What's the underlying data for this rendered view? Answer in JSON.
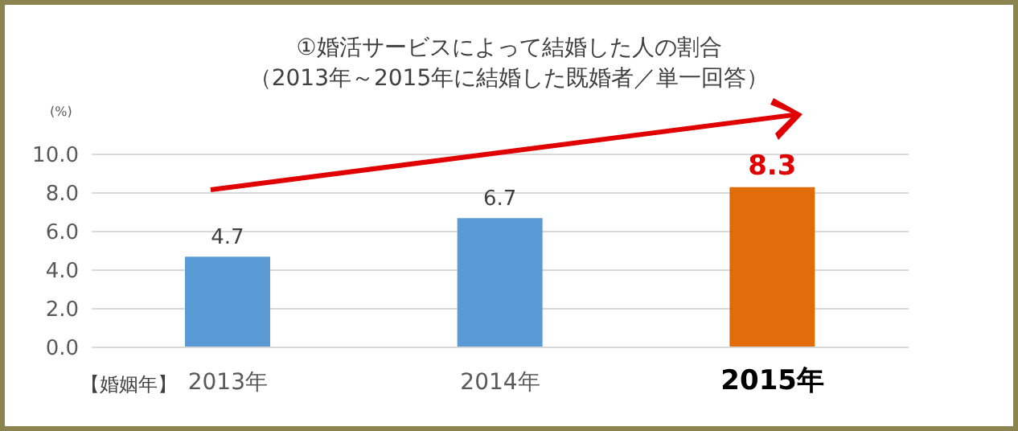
{
  "chart_data": {
    "type": "bar",
    "title": "①婚活サービスによって結婚した人の割合",
    "subtitle": "（2013年～2015年に結婚した既婚者／単一回答）",
    "ylabel": "(%)",
    "xlabel": "【婚姻年】",
    "categories": [
      "2013年",
      "2014年",
      "2015年"
    ],
    "values": [
      4.7,
      6.7,
      8.3
    ],
    "colors": [
      "#5b9bd5",
      "#5b9bd5",
      "#e36c0a"
    ],
    "ylim": [
      0,
      10
    ],
    "yticks": [
      {
        "value": 0,
        "label": "0.0"
      },
      {
        "value": 2,
        "label": "2.0"
      },
      {
        "value": 4,
        "label": "4.0"
      },
      {
        "value": 6,
        "label": "6.0"
      },
      {
        "value": 8,
        "label": "8.0"
      },
      {
        "value": 10,
        "label": "10.0"
      }
    ],
    "grid": "y",
    "data_labels": true
  }
}
